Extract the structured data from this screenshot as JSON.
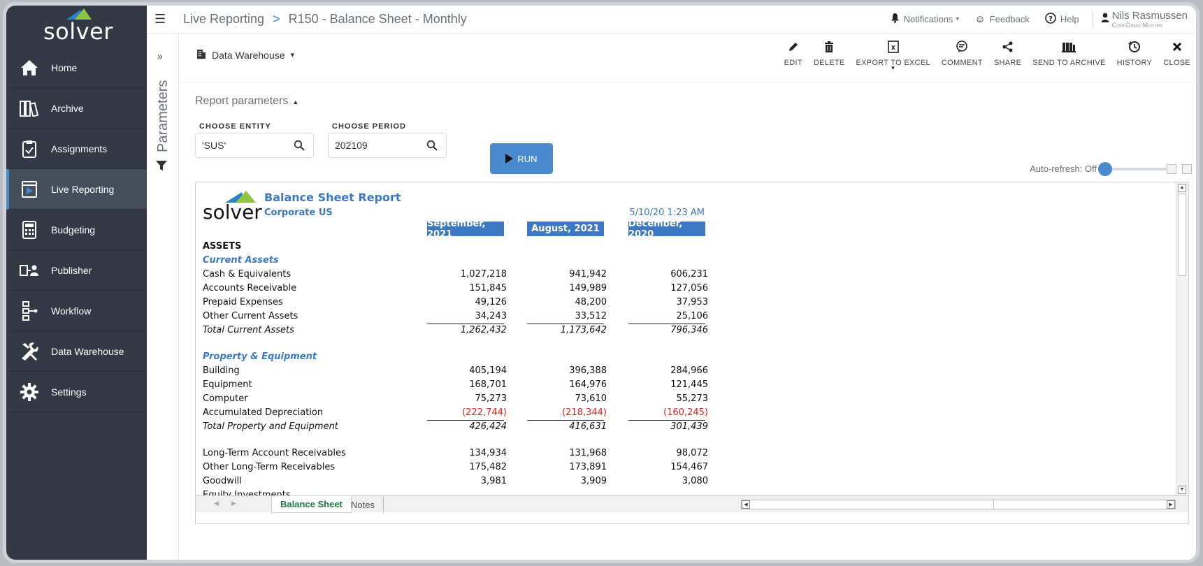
{
  "app": {
    "logo_text": "solver"
  },
  "sidebar": {
    "items": [
      {
        "label": "Home",
        "icon": "home-icon"
      },
      {
        "label": "Archive",
        "icon": "archive-icon"
      },
      {
        "label": "Assignments",
        "icon": "clipboard-icon"
      },
      {
        "label": "Live Reporting",
        "icon": "live-report-icon",
        "active": true
      },
      {
        "label": "Budgeting",
        "icon": "calculator-icon"
      },
      {
        "label": "Publisher",
        "icon": "publisher-icon"
      },
      {
        "label": "Workflow",
        "icon": "workflow-icon"
      },
      {
        "label": "Data Warehouse",
        "icon": "tools-icon"
      },
      {
        "label": "Settings",
        "icon": "gear-icon"
      }
    ]
  },
  "header": {
    "breadcrumb": [
      "Live Reporting",
      "R150 - Balance Sheet - Monthly"
    ],
    "breadcrumb_sep": ">",
    "notifications": "Notifications",
    "feedback": "Feedback",
    "help": "Help",
    "user_name": "Nils Rasmussen",
    "user_sub": "CorpDemo Master"
  },
  "params_strip": {
    "label": "Parameters",
    "expand": "»"
  },
  "toolbar": {
    "source": "Data Warehouse",
    "actions": [
      {
        "label": "EDIT",
        "icon": "pencil-icon"
      },
      {
        "label": "DELETE",
        "icon": "trash-icon"
      },
      {
        "label": "EXPORT TO EXCEL",
        "icon": "excel-icon"
      },
      {
        "label": "COMMENT",
        "icon": "comment-icon"
      },
      {
        "label": "SHARE",
        "icon": "share-icon"
      },
      {
        "label": "SEND TO ARCHIVE",
        "icon": "archive-send-icon"
      },
      {
        "label": "HISTORY",
        "icon": "history-icon"
      },
      {
        "label": "CLOSE",
        "icon": "close-icon"
      }
    ]
  },
  "parameters": {
    "title": "Report parameters",
    "entity_label": "CHOOSE ENTITY",
    "entity_value": "'SUS'",
    "period_label": "CHOOSE PERIOD",
    "period_value": "202109",
    "run_label": "RUN",
    "autorefresh": "Auto-refresh: Off"
  },
  "report": {
    "title": "Balance Sheet Report",
    "entity": "Corporate US",
    "timestamp": "5/10/20 1:23 AM",
    "columns": [
      "September, 2021",
      "August, 2021",
      "December, 2020"
    ],
    "rows": [
      {
        "type": "head",
        "label": "ASSETS"
      },
      {
        "type": "sect",
        "label": "Current Assets"
      },
      {
        "type": "line",
        "label": "Cash & Equivalents",
        "values": [
          "1,027,218",
          "941,942",
          "606,231"
        ]
      },
      {
        "type": "line",
        "label": "Accounts Receivable",
        "values": [
          "151,845",
          "149,989",
          "127,056"
        ]
      },
      {
        "type": "line",
        "label": "Prepaid Expenses",
        "values": [
          "49,126",
          "48,200",
          "37,953"
        ]
      },
      {
        "type": "line",
        "label": "Other Current Assets",
        "values": [
          "34,243",
          "33,512",
          "25,106"
        ],
        "underline": true
      },
      {
        "type": "total",
        "label": "Total Current Assets",
        "values": [
          "1,262,432",
          "1,173,642",
          "796,346"
        ]
      },
      {
        "type": "gap"
      },
      {
        "type": "sect",
        "label": "Property & Equipment"
      },
      {
        "type": "line",
        "label": "Building",
        "values": [
          "405,194",
          "396,388",
          "284,966"
        ]
      },
      {
        "type": "line",
        "label": "Equipment",
        "values": [
          "168,701",
          "164,976",
          "121,445"
        ]
      },
      {
        "type": "line",
        "label": "Computer",
        "values": [
          "75,273",
          "73,610",
          "55,273"
        ]
      },
      {
        "type": "neg",
        "label": "Accumulated Depreciation",
        "values": [
          "(222,744)",
          "(218,344)",
          "(160,245)"
        ],
        "underline": true
      },
      {
        "type": "total",
        "label": "Total Property and Equipment",
        "values": [
          "426,424",
          "416,631",
          "301,439"
        ]
      },
      {
        "type": "gap"
      },
      {
        "type": "line",
        "label": "Long-Term Account Receivables",
        "values": [
          "134,934",
          "131,968",
          "98,072"
        ]
      },
      {
        "type": "line",
        "label": "Other Long-Term Receivables",
        "values": [
          "175,482",
          "173,891",
          "154,467"
        ]
      },
      {
        "type": "line",
        "label": "Goodwill",
        "values": [
          "3,981",
          "3,909",
          "3,080"
        ]
      },
      {
        "type": "line",
        "label": "Equity Investments",
        "values": [
          "",
          "",
          ""
        ]
      }
    ]
  },
  "sheet_tabs": [
    "Balance Sheet",
    "Notes"
  ],
  "colors": {
    "sidebar_bg": "#333a45",
    "accent": "#4a8bd0",
    "report_blue": "#3c78c3",
    "negative": "#e02020",
    "active_tab": "#1e7a3c"
  }
}
